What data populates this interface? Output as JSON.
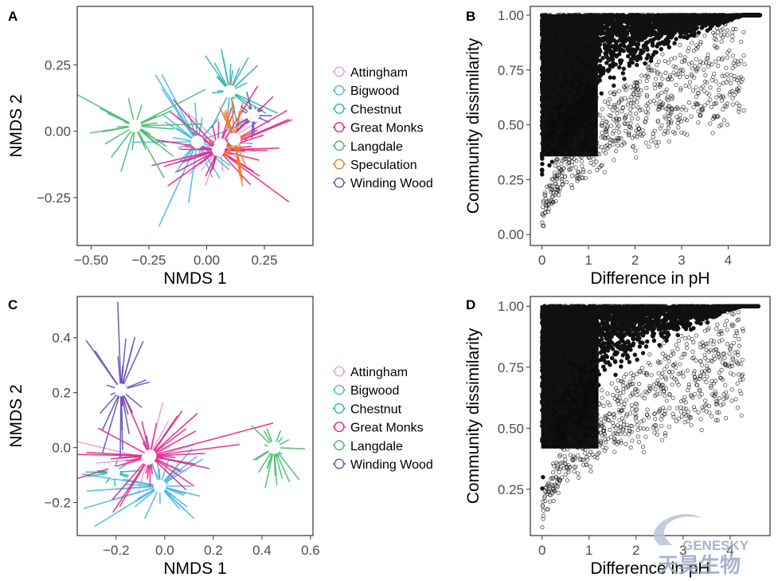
{
  "chart_data": [
    {
      "panel": "A",
      "type": "scatter",
      "subtype": "nmds-spider",
      "xlabel": "NMDS 1",
      "ylabel": "NMDS 2",
      "xlim": [
        -0.56,
        0.46
      ],
      "ylim": [
        -0.43,
        0.47
      ],
      "xticks": [
        -0.5,
        -0.25,
        0,
        0.25
      ],
      "xtick_labels": [
        "−0.50",
        "−0.25",
        "0.00",
        "0.25"
      ],
      "yticks": [
        -0.25,
        0,
        0.25
      ],
      "ytick_labels": [
        "−0.25",
        "0.00",
        "0.25"
      ],
      "grid": false,
      "legend_position": "right",
      "series": [
        {
          "name": "Attingham",
          "color": "#e59ee0",
          "centroid": [
            0.06,
            -0.05
          ],
          "n": 20,
          "spread": [
            0.17,
            0.1
          ]
        },
        {
          "name": "Bigwood",
          "color": "#4ab9e3",
          "centroid": [
            -0.04,
            -0.04
          ],
          "n": 35,
          "spread": [
            0.17,
            0.16
          ]
        },
        {
          "name": "Chestnut",
          "color": "#2eb5b5",
          "centroid": [
            0.1,
            0.15
          ],
          "n": 25,
          "spread": [
            0.11,
            0.12
          ]
        },
        {
          "name": "Great Monks",
          "color": "#e5268a",
          "centroid": [
            0.05,
            -0.07
          ],
          "n": 40,
          "spread": [
            0.2,
            0.14
          ]
        },
        {
          "name": "Langdale",
          "color": "#4dbb75",
          "centroid": [
            -0.31,
            0.02
          ],
          "n": 30,
          "spread": [
            0.15,
            0.11
          ]
        },
        {
          "name": "Speculation",
          "color": "#f07e22",
          "centroid": [
            0.12,
            -0.03
          ],
          "n": 25,
          "spread": [
            0.07,
            0.14
          ]
        },
        {
          "name": "Winding Wood",
          "color": "#6a52b8",
          "centroid": [
            0.2,
            0.06
          ],
          "n": 20,
          "spread": [
            0.06,
            0.06
          ]
        }
      ]
    },
    {
      "panel": "B",
      "type": "scatter",
      "xlabel": "Difference in pH",
      "ylabel": "Community dissimilarity",
      "xlim": [
        -0.25,
        4.9
      ],
      "ylim": [
        -0.05,
        1.04
      ],
      "xticks": [
        0,
        1,
        2,
        3,
        4
      ],
      "xtick_labels": [
        "0",
        "1",
        "2",
        "3",
        "4"
      ],
      "yticks": [
        0,
        0.25,
        0.5,
        0.75,
        1
      ],
      "ytick_labels": [
        "0.00",
        "0.25",
        "0.50",
        "0.75",
        "1.00"
      ],
      "grid": false,
      "point_style": "open-circle",
      "x_max": 4.7,
      "y_min": 0.0,
      "y_max": 1.0,
      "notes_points_saturate_near": 1.0
    },
    {
      "panel": "C",
      "type": "scatter",
      "subtype": "nmds-spider",
      "xlabel": "NMDS 1",
      "ylabel": "NMDS 2",
      "xlim": [
        -0.36,
        0.61
      ],
      "ylim": [
        -0.32,
        0.55
      ],
      "xticks": [
        -0.2,
        0,
        0.2,
        0.4,
        0.6
      ],
      "xtick_labels": [
        "−0.2",
        "0.0",
        "0.2",
        "0.4",
        "0.6"
      ],
      "yticks": [
        -0.2,
        0,
        0.2,
        0.4
      ],
      "ytick_labels": [
        "−0.2",
        "0.0",
        "0.2",
        "0.4"
      ],
      "grid": false,
      "legend_position": "right",
      "series": [
        {
          "name": "Attingham",
          "color": "#e59ee0",
          "centroid": [
            -0.07,
            -0.04
          ],
          "n": 20,
          "spread": [
            0.2,
            0.12
          ]
        },
        {
          "name": "Bigwood",
          "color": "#4ab9e3",
          "centroid": [
            -0.02,
            -0.14
          ],
          "n": 35,
          "spread": [
            0.22,
            0.09
          ]
        },
        {
          "name": "Chestnut",
          "color": "#2eb5b5",
          "centroid": [
            -0.21,
            -0.09
          ],
          "n": 15,
          "spread": [
            0.08,
            0.04
          ]
        },
        {
          "name": "Great Monks",
          "color": "#e5268a",
          "centroid": [
            -0.06,
            -0.03
          ],
          "n": 40,
          "spread": [
            0.26,
            0.15
          ]
        },
        {
          "name": "Langdale",
          "color": "#4dbb75",
          "centroid": [
            0.45,
            0.0
          ],
          "n": 30,
          "spread": [
            0.08,
            0.12
          ]
        },
        {
          "name": "Winding Wood",
          "color": "#6a52b8",
          "centroid": [
            -0.18,
            0.21
          ],
          "n": 30,
          "spread": [
            0.08,
            0.2
          ]
        }
      ]
    },
    {
      "panel": "D",
      "type": "scatter",
      "xlabel": "Difference in pH",
      "ylabel": "Community dissimilarity",
      "xlim": [
        -0.25,
        4.85
      ],
      "ylim": [
        0.06,
        1.04
      ],
      "xticks": [
        0,
        1,
        2,
        3,
        4
      ],
      "xtick_labels": [
        "0",
        "1",
        "2",
        "3",
        "4"
      ],
      "yticks": [
        0.25,
        0.5,
        0.75,
        1
      ],
      "ytick_labels": [
        "0.25",
        "0.50",
        "0.75",
        "1.00"
      ],
      "grid": false,
      "point_style": "open-circle",
      "x_max": 4.6,
      "y_min": 0.09,
      "y_max": 1.0
    }
  ],
  "watermark": {
    "latin": "GENESKY",
    "cjk": "天昊生物",
    "color": "#9aa6c4"
  }
}
